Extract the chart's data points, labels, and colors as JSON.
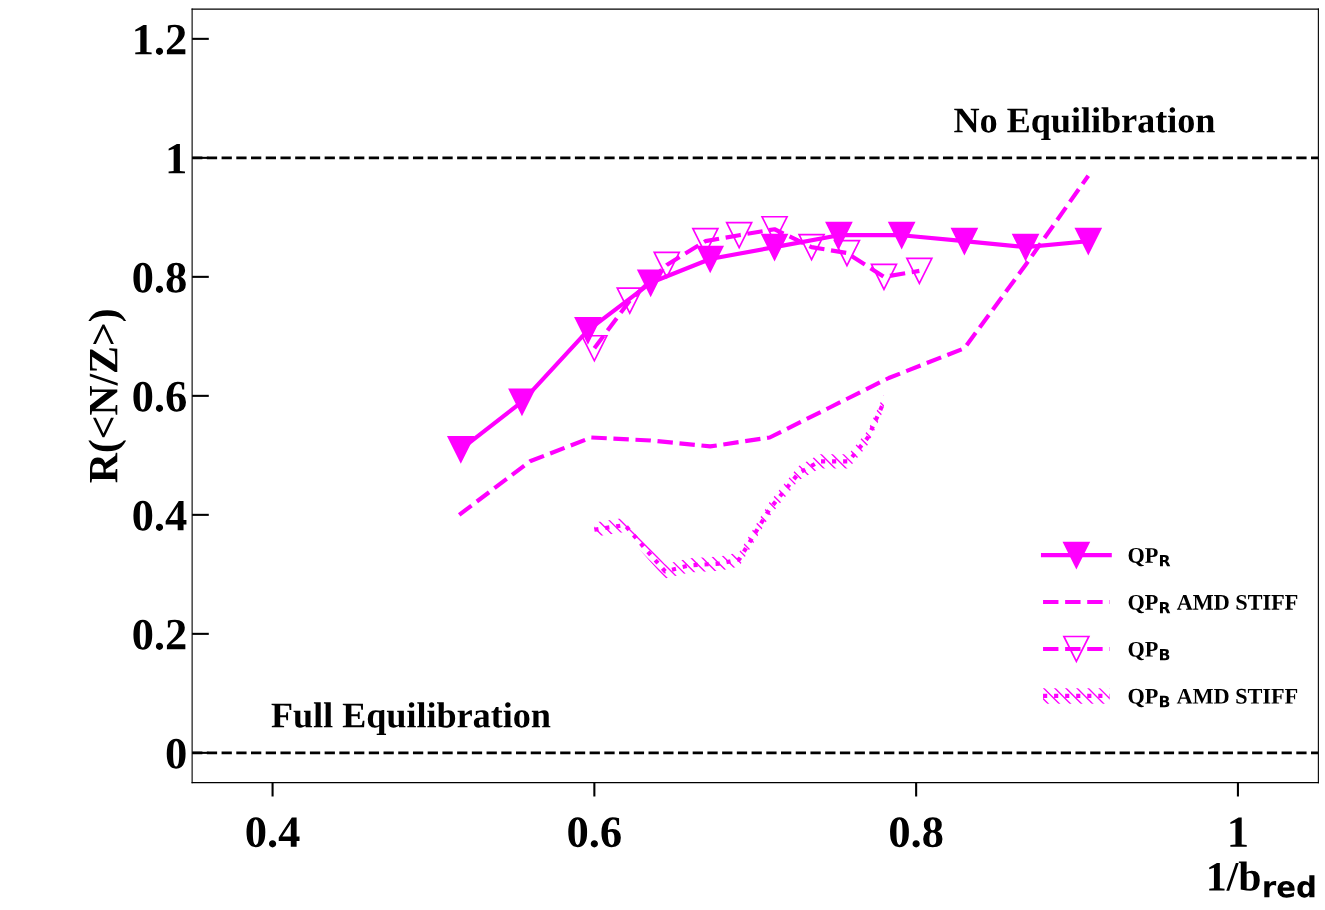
{
  "chart_data": {
    "type": "line",
    "xlabel": "1/b$_{red}$",
    "ylabel": "R(<N/Z>)",
    "xlim": [
      0.35,
      1.05
    ],
    "ylim": [
      -0.05,
      1.25
    ],
    "xticks": [
      0.4,
      0.6,
      0.8,
      1
    ],
    "yticks": [
      0,
      0.2,
      0.4,
      0.6,
      0.8,
      1,
      1.2
    ],
    "grid": false,
    "legend": "bottom right",
    "ref_lines": [
      {
        "axis": "y",
        "value": 1,
        "label": "No Equilibration",
        "color": "#000000",
        "line_style": "dashed"
      },
      {
        "axis": "y",
        "value": 0,
        "label": "Full Equilibration",
        "color": "#000000",
        "line_style": "dashed"
      }
    ],
    "series": [
      {
        "name": "QP$_{R}$",
        "color": "#ff00ff",
        "marker": "triangle",
        "line_style": "solid",
        "x": [
          0.517,
          0.555,
          0.596,
          0.635,
          0.672,
          0.712,
          0.752,
          0.791,
          0.83,
          0.868,
          0.907
        ],
        "values": [
          0.51,
          0.59,
          0.71,
          0.79,
          0.83,
          0.85,
          0.87,
          0.87,
          0.86,
          0.85,
          0.86
        ]
      },
      {
        "name": "QP$_{R}$ AMD STIFF",
        "color": "#ff00ff",
        "marker": "none",
        "line_style": "dashed",
        "x": [
          0.516,
          0.56,
          0.598,
          0.635,
          0.672,
          0.709,
          0.746,
          0.783,
          0.83,
          0.868,
          0.907
        ],
        "values": [
          0.4,
          0.49,
          0.53,
          0.525,
          0.515,
          0.53,
          0.58,
          0.63,
          0.68,
          0.82,
          0.97
        ]
      },
      {
        "name": "QP$_{B}$",
        "color": "#ff00ff",
        "marker": "triangle",
        "line_style": "dashed",
        "x": [
          0.6,
          0.622,
          0.645,
          0.669,
          0.69,
          0.712,
          0.735,
          0.757,
          0.78,
          0.802
        ],
        "values": [
          0.68,
          0.76,
          0.82,
          0.86,
          0.87,
          0.88,
          0.85,
          0.84,
          0.8,
          0.81
        ]
      },
      {
        "name": "QP$_{B}$ AMD STIFF",
        "color": "#ff00ff",
        "marker": "none",
        "line_style": "dotted",
        "x": [
          0.6,
          0.619,
          0.631,
          0.644,
          0.659,
          0.678,
          0.69,
          0.709,
          0.727,
          0.74,
          0.758,
          0.77,
          0.78
        ],
        "values": [
          0.375,
          0.383,
          0.345,
          0.305,
          0.315,
          0.318,
          0.325,
          0.41,
          0.47,
          0.49,
          0.49,
          0.53,
          0.59
        ],
        "lower": [
          0.363,
          0.371,
          0.333,
          0.293,
          0.303,
          0.306,
          0.313,
          0.398,
          0.458,
          0.478,
          0.478,
          0.518,
          0.578
        ],
        "upper": [
          0.387,
          0.395,
          0.357,
          0.317,
          0.327,
          0.33,
          0.337,
          0.422,
          0.482,
          0.502,
          0.502,
          0.542,
          0.602
        ]
      }
    ]
  }
}
